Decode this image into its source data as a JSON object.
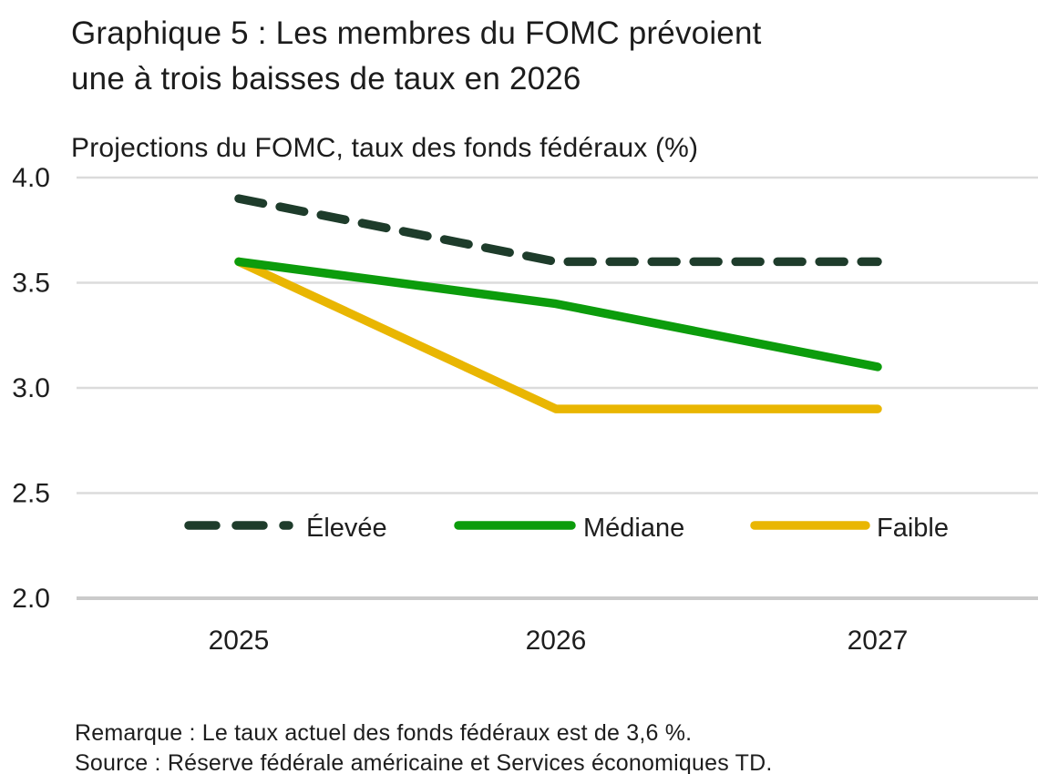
{
  "title": {
    "line1": "Graphique 5 : Les membres du FOMC prévoient",
    "line2": "une à trois baisses de taux en 2026"
  },
  "chart_data": {
    "type": "line",
    "title": "Graphique 5 : Les membres du FOMC prévoient une à trois baisses de taux en 2026",
    "subtitle": "Projections du FOMC, taux des fonds fédéraux (%)",
    "categories": [
      "2025",
      "2026",
      "2027"
    ],
    "series": [
      {
        "name": "Élevée",
        "values": [
          3.9,
          3.6,
          3.6
        ],
        "color": "#1E3C2B",
        "style": "dashed"
      },
      {
        "name": "Médiane",
        "values": [
          3.6,
          3.4,
          3.1
        ],
        "color": "#0C9C0C",
        "style": "solid"
      },
      {
        "name": "Faible",
        "values": [
          3.6,
          2.9,
          2.9
        ],
        "color": "#E9B602",
        "style": "solid"
      }
    ],
    "ylim": [
      2.0,
      4.0
    ],
    "y_ticks": [
      4.0,
      3.5,
      3.0,
      2.5,
      2.0
    ],
    "y_tick_labels": [
      "4.0",
      "3.5",
      "3.0",
      "2.5",
      "2.0"
    ],
    "grid": "horizontal",
    "legend_position": "inside-bottom"
  },
  "colors": {
    "grid": "#DBDBDB",
    "baseline": "#CBCBCB",
    "text": "#1E1E1E"
  },
  "notes": {
    "remark": "Remarque : Le taux actuel des fonds fédéraux est de 3,6 %.",
    "source": "Source : Réserve fédérale américaine et Services économiques TD."
  }
}
